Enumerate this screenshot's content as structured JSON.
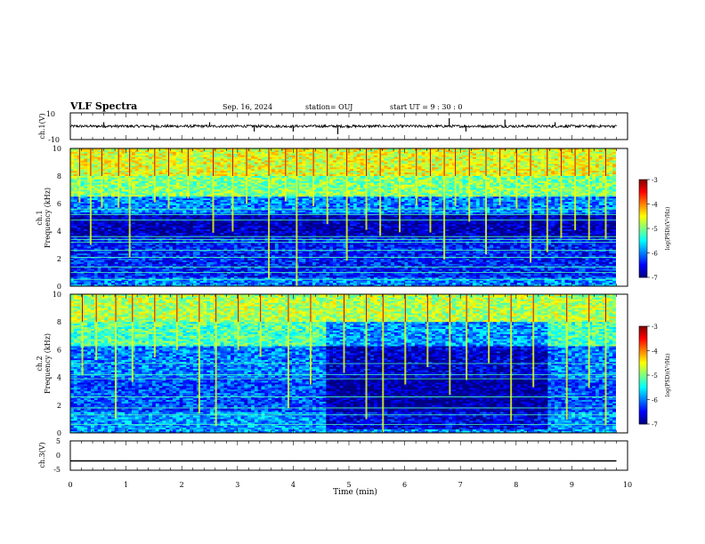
{
  "header": {
    "title": "VLF Spectra",
    "date": "Sep. 16, 2024",
    "station": "station= OUJ",
    "start": "start  UT =   9 : 30 : 0"
  },
  "chart_data": [
    {
      "type": "line",
      "name": "ch1-waveform",
      "ylabel": "ch.1(V)",
      "ylim": [
        -10,
        10
      ],
      "yticks": [
        "10",
        "-10"
      ],
      "x_range_min": [
        0,
        9.8
      ],
      "baseline": 0,
      "noise_amplitude": 2,
      "spikes": [
        {
          "x": 0.6,
          "y": 3
        },
        {
          "x": 1.5,
          "y": -3
        },
        {
          "x": 2.5,
          "y": 3
        },
        {
          "x": 3.3,
          "y": -4
        },
        {
          "x": 4.0,
          "y": -4
        },
        {
          "x": 4.8,
          "y": -6
        },
        {
          "x": 6.8,
          "y": 6
        },
        {
          "x": 7.1,
          "y": -4
        },
        {
          "x": 7.8,
          "y": 5
        },
        {
          "x": 8.7,
          "y": 3
        }
      ]
    },
    {
      "type": "heatmap",
      "name": "ch1-spectrogram",
      "ylabel_top": "ch.1",
      "ylabel": "Frequency (kHz)",
      "ylim": [
        0,
        10
      ],
      "yticks": [
        "0",
        "2",
        "4",
        "6",
        "8",
        "10"
      ],
      "xlim": [
        0,
        10
      ],
      "x_data_end": 9.8,
      "colorbar": {
        "label": "log(PSD)(V²/Hz)",
        "range": [
          -7,
          -3
        ],
        "ticks": [
          "-3",
          "-4",
          "-5",
          "-6",
          "-7"
        ]
      },
      "bands": [
        {
          "f": [
            0,
            0.6
          ],
          "level": -6.0
        },
        {
          "f": [
            0.6,
            3.5
          ],
          "level": -6.4
        },
        {
          "f": [
            3.5,
            5.2
          ],
          "level": -6.8
        },
        {
          "f": [
            5.2,
            6.5
          ],
          "level": -6.0
        },
        {
          "f": [
            6.5,
            8.0
          ],
          "level": -5.0
        },
        {
          "f": [
            8.0,
            10
          ],
          "level": -4.6
        }
      ],
      "lines_khz": [
        0.5,
        1.0,
        1.4,
        2.1,
        2.6,
        3.2,
        3.4,
        3.6,
        4.8,
        5.2,
        5.6
      ],
      "spherics_min": [
        0.15,
        0.35,
        0.55,
        0.85,
        1.05,
        1.5,
        1.75,
        2.1,
        2.55,
        2.9,
        3.15,
        3.55,
        3.85,
        4.05,
        4.35,
        4.6,
        4.95,
        5.3,
        5.55,
        5.9,
        6.2,
        6.45,
        6.7,
        6.9,
        7.15,
        7.45,
        7.7,
        8.0,
        8.25,
        8.55,
        8.8,
        9.05,
        9.3,
        9.6
      ]
    },
    {
      "type": "heatmap",
      "name": "ch2-spectrogram",
      "ylabel_top": "ch.2",
      "ylabel": "Frequency (kHz)",
      "ylim": [
        0,
        10
      ],
      "yticks": [
        "0",
        "2",
        "4",
        "6",
        "8",
        "10"
      ],
      "xlim": [
        0,
        10
      ],
      "x_data_end": 9.8,
      "colorbar": {
        "label": "log(PSD)(V²/Hz)",
        "range": [
          -7,
          -3
        ],
        "ticks": [
          "-3",
          "-4",
          "-5",
          "-6",
          "-7"
        ]
      },
      "bands": [
        {
          "f": [
            0,
            1.5
          ],
          "level": -5.9
        },
        {
          "f": [
            1.5,
            4.0
          ],
          "level": -6.2
        },
        {
          "f": [
            4.0,
            6.2
          ],
          "level": -6.0
        },
        {
          "f": [
            6.2,
            8.0
          ],
          "level": -5.2
        },
        {
          "f": [
            8.0,
            10
          ],
          "level": -4.8
        }
      ],
      "quiet_segment_min": [
        4.6,
        8.6
      ],
      "lines_khz": [
        0.6,
        1.3,
        1.8,
        2.6,
        3.9,
        4.2,
        5.0
      ],
      "spherics_min": [
        0.2,
        0.45,
        0.8,
        1.1,
        1.5,
        1.9,
        2.3,
        2.6,
        3.0,
        3.4,
        3.9,
        4.3,
        4.9,
        5.3,
        5.6,
        6.0,
        6.4,
        6.8,
        7.1,
        7.5,
        7.9,
        8.3,
        8.9,
        9.3,
        9.6
      ]
    },
    {
      "type": "line",
      "name": "ch3-waveform",
      "ylabel": "ch.3(V)",
      "ylim": [
        -5,
        5
      ],
      "yticks": [
        "5",
        "0",
        "-5"
      ],
      "x_range_min": [
        0,
        9.8
      ],
      "baseline": -1.8,
      "xlabel": "Time (min)",
      "xticks": [
        "0",
        "1",
        "2",
        "3",
        "4",
        "5",
        "6",
        "7",
        "8",
        "9",
        "10"
      ],
      "xlim": [
        0,
        10
      ]
    }
  ]
}
